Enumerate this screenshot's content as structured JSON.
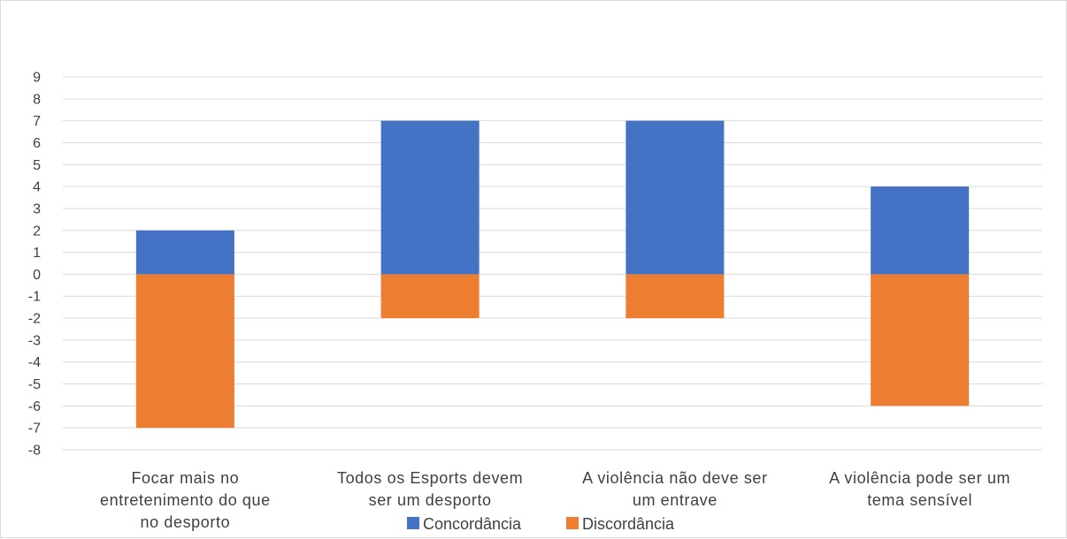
{
  "chart_data": {
    "type": "bar",
    "stacked": true,
    "title": "",
    "xlabel": "",
    "ylabel": "",
    "categories": [
      [
        "Focar mais no",
        "entretenimento do que",
        "no desporto"
      ],
      [
        "Todos os Esports devem",
        "ser um desporto"
      ],
      [
        "A violência não deve ser",
        "um entrave"
      ],
      [
        "A violência pode ser um",
        "tema sensível"
      ]
    ],
    "series": [
      {
        "name": "Concordância",
        "color": "#4472c4",
        "values": [
          2,
          7,
          7,
          4
        ]
      },
      {
        "name": "Discordância",
        "color": "#ed7d31",
        "values": [
          -7,
          -2,
          -2,
          -6
        ]
      }
    ],
    "ylim": [
      -8,
      9
    ],
    "yticks": [
      9,
      8,
      7,
      6,
      5,
      4,
      3,
      2,
      1,
      0,
      -1,
      -2,
      -3,
      -4,
      -5,
      -6,
      -7,
      -8
    ],
    "grid": true,
    "legend_position": "bottom"
  }
}
